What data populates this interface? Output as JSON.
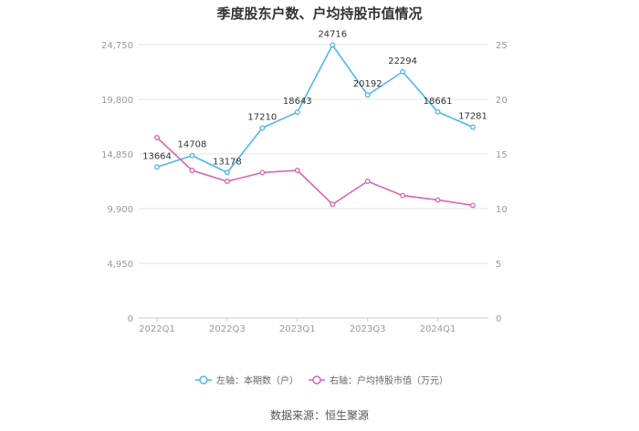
{
  "title": "季度股东户数、户均持股市值情况",
  "source": "数据来源：恒生聚源",
  "chart_data": {
    "type": "line",
    "title": "季度股东户数、户均持股市值情况",
    "x": [
      "2022Q1",
      "2022Q2",
      "2022Q3",
      "2022Q4",
      "2023Q1",
      "2023Q2",
      "2023Q3",
      "2023Q4",
      "2024Q1",
      "2024Q2"
    ],
    "x_tick_labels": [
      "2022Q1",
      "2022Q3",
      "2023Q1",
      "2023Q3",
      "2024Q1"
    ],
    "left_axis": {
      "ylim": [
        0,
        24750
      ],
      "ticks": [
        "0",
        "4,950",
        "9,900",
        "14,850",
        "19,800",
        "24,750"
      ]
    },
    "right_axis": {
      "ylim": [
        0,
        25
      ],
      "ticks": [
        "0",
        "5",
        "10",
        "15",
        "20",
        "25"
      ]
    },
    "grid": true,
    "legend_position": "bottom",
    "series": [
      {
        "name": "左轴：本期数（户）",
        "axis": "left",
        "color": "#4db8e8",
        "values": [
          13664,
          14708,
          13178,
          17210,
          18643,
          24716,
          20192,
          22294,
          18661,
          17281
        ],
        "labels": [
          "13664",
          "14708",
          "13178",
          "17210",
          "18643",
          "24716",
          "20192",
          "22294",
          "18661",
          "17281"
        ]
      },
      {
        "name": "右轴：户均持股市值（万元）",
        "axis": "right",
        "color": "#d966b3",
        "values": [
          16.5,
          13.5,
          12.5,
          13.3,
          13.5,
          10.4,
          12.5,
          11.2,
          10.8,
          10.3
        ]
      }
    ]
  }
}
